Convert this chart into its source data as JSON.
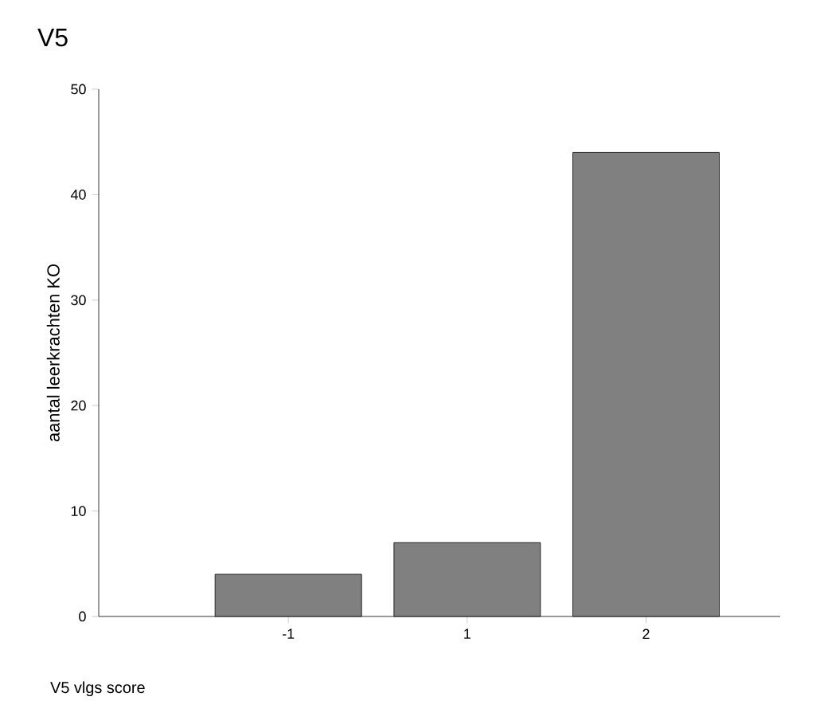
{
  "chart_data": {
    "type": "bar",
    "title": "V5",
    "xlabel": "V5 vlgs score",
    "ylabel": "aantal leerkrachten KO",
    "categories": [
      "-1",
      "1",
      "2"
    ],
    "values": [
      4,
      7,
      44
    ],
    "color": "#808080",
    "ylim": [
      0,
      50
    ],
    "yticks": [
      0,
      10,
      20,
      30,
      40,
      50
    ],
    "grid": false
  }
}
